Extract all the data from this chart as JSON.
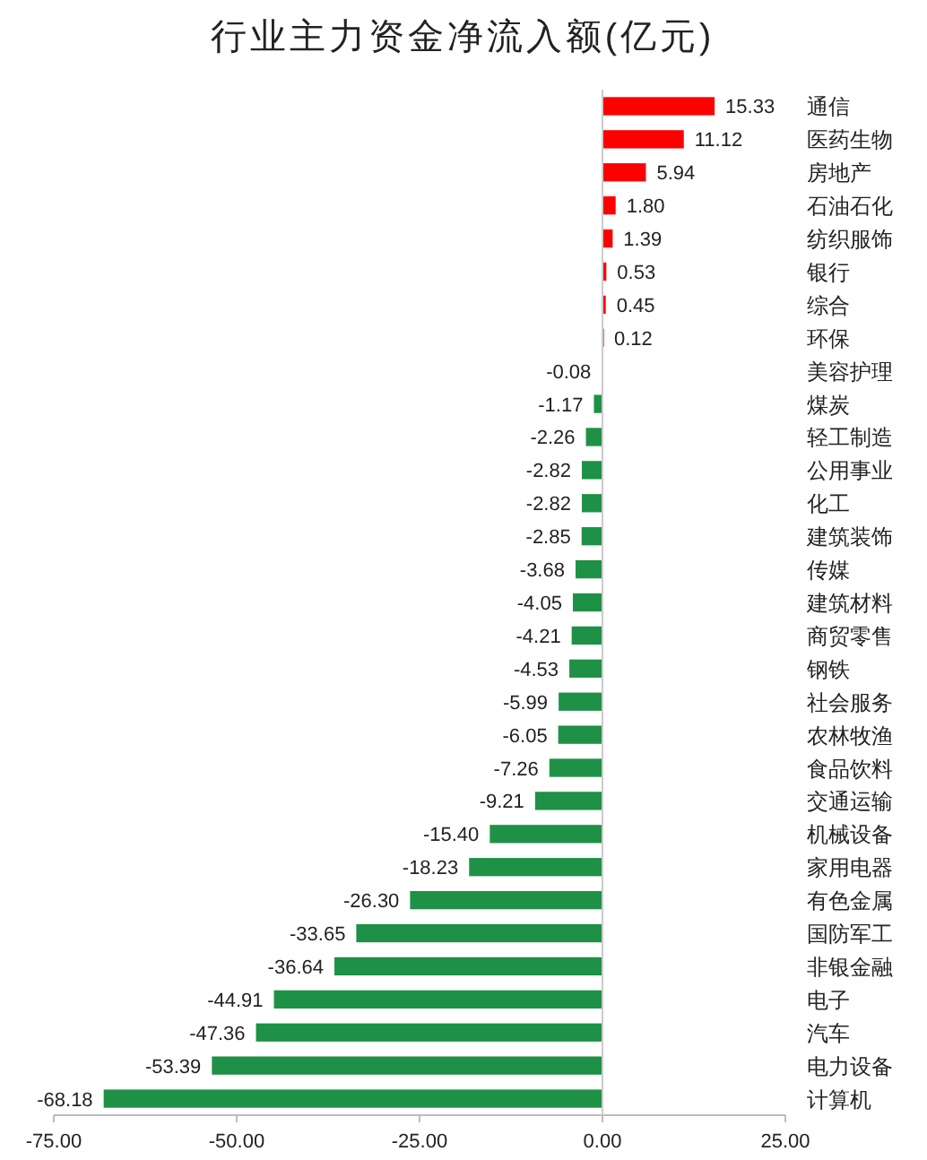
{
  "chart_data": {
    "type": "bar",
    "orientation": "horizontal",
    "title": "行业主力资金净流入额(亿元)",
    "categories": [
      "通信",
      "医药生物",
      "房地产",
      "石油石化",
      "纺织服饰",
      "银行",
      "综合",
      "环保",
      "美容护理",
      "煤炭",
      "轻工制造",
      "公用事业",
      "化工",
      "建筑装饰",
      "传媒",
      "建筑材料",
      "商贸零售",
      "钢铁",
      "社会服务",
      "农林牧渔",
      "食品饮料",
      "交通运输",
      "机械设备",
      "家用电器",
      "有色金属",
      "国防军工",
      "非银金融",
      "电子",
      "汽车",
      "电力设备",
      "计算机"
    ],
    "values": [
      15.33,
      11.12,
      5.94,
      1.8,
      1.39,
      0.53,
      0.45,
      0.12,
      -0.08,
      -1.17,
      -2.26,
      -2.82,
      -2.82,
      -2.85,
      -3.68,
      -4.05,
      -4.21,
      -4.53,
      -5.99,
      -6.05,
      -7.26,
      -9.21,
      -15.4,
      -18.23,
      -26.3,
      -33.65,
      -36.64,
      -44.91,
      -47.36,
      -53.39,
      -68.18
    ],
    "value_labels": [
      "15.33",
      "11.12",
      "5.94",
      "1.80",
      "1.39",
      "0.53",
      "0.45",
      "0.12",
      "-0.08",
      "-1.17",
      "-2.26",
      "-2.82",
      "-2.82",
      "-2.85",
      "-3.68",
      "-4.05",
      "-4.21",
      "-4.53",
      "-5.99",
      "-6.05",
      "-7.26",
      "-9.21",
      "-15.40",
      "-18.23",
      "-26.30",
      "-33.65",
      "-36.64",
      "-44.91",
      "-47.36",
      "-53.39",
      "-68.18"
    ],
    "colors": [
      "#ff0000",
      "#ff0000",
      "#ff0000",
      "#ff0000",
      "#ff0000",
      "#ff0000",
      "#ff0000",
      "#ff0000",
      "#1f9146",
      "#1f9146",
      "#1f9146",
      "#1f9146",
      "#1f9146",
      "#1f9146",
      "#1f9146",
      "#1f9146",
      "#1f9146",
      "#1f9146",
      "#1f9146",
      "#1f9146",
      "#1f9146",
      "#1f9146",
      "#1f9146",
      "#1f9146",
      "#1f9146",
      "#1f9146",
      "#1f9146",
      "#1f9146",
      "#1f9146",
      "#1f9146",
      "#1f9146"
    ],
    "xlim": [
      -75,
      25
    ],
    "xticks": [
      {
        "value": -75,
        "label": "-75.00"
      },
      {
        "value": -50,
        "label": "-50.00"
      },
      {
        "value": -25,
        "label": "-25.00"
      },
      {
        "value": 0,
        "label": "0.00"
      },
      {
        "value": 25,
        "label": "25.00"
      }
    ],
    "ref_lines": [
      {
        "axis": "x",
        "value": 0,
        "color": "#cccccc"
      }
    ]
  }
}
